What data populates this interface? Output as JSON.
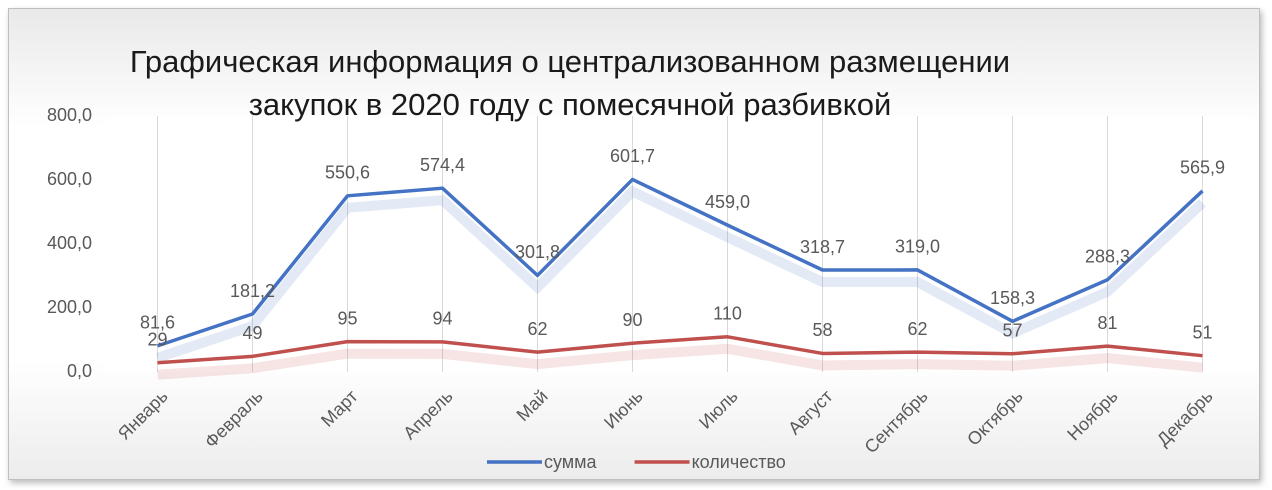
{
  "chart_data": {
    "type": "line",
    "title": "Графическая информация о централизованном размещении закупок в 2020 году с помесячной разбивкой",
    "categories": [
      "Январь",
      "Февраль",
      "Март",
      "Апрель",
      "Май",
      "Июнь",
      "Июль",
      "Август",
      "Сентябрь",
      "Октябрь",
      "Ноябрь",
      "Декабрь"
    ],
    "series": [
      {
        "name": "сумма",
        "color": "#4472c4",
        "values": [
          81.6,
          181.2,
          550.6,
          574.4,
          301.8,
          601.7,
          459.0,
          318.7,
          319.0,
          158.3,
          288.3,
          565.9
        ],
        "value_labels": [
          "81,6",
          "181,2",
          "550,6",
          "574,4",
          "301,8",
          "601,7",
          "459,0",
          "318,7",
          "319,0",
          "158,3",
          "288,3",
          "565,9"
        ]
      },
      {
        "name": "количество",
        "color": "#c0504d",
        "values": [
          29,
          49,
          95,
          94,
          62,
          90,
          110,
          58,
          62,
          57,
          81,
          51
        ]
      }
    ],
    "ylim": [
      0,
      800
    ],
    "yticks": [
      {
        "value": 0,
        "label": "0,0"
      },
      {
        "value": 200,
        "label": "200,0"
      },
      {
        "value": 400,
        "label": "400,0"
      },
      {
        "value": 600,
        "label": "600,0"
      },
      {
        "value": 800,
        "label": "800,0"
      }
    ],
    "grid": "x",
    "legend": "bottom"
  }
}
